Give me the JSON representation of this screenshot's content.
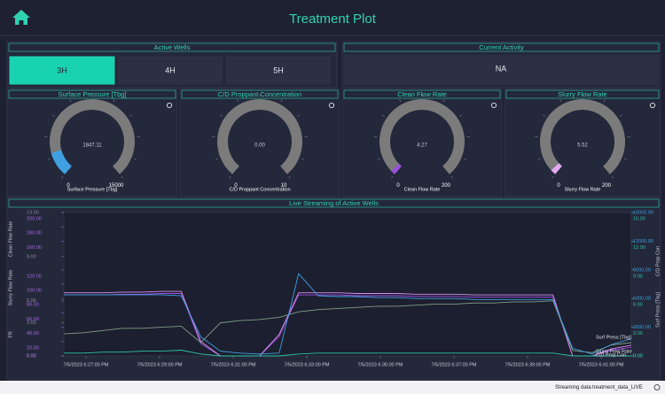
{
  "header": {
    "title": "Treatment Plot"
  },
  "active_wells": {
    "title": "Active Wells",
    "wells": [
      "3H",
      "4H",
      "5H"
    ],
    "selected": 0
  },
  "current_activity": {
    "title": "Current Activity",
    "value": "NA"
  },
  "gauges": [
    {
      "title": "Surface Pressure [Tbg]",
      "value": 1847.11,
      "min": 0,
      "max": 15000,
      "label": "Surface Pressure [Tbg]",
      "color": "#3f9fe0"
    },
    {
      "title": "C/D Proppant Concentration",
      "value": 0,
      "value_label": "0.00",
      "min": 0,
      "max": 10,
      "label": "C/D Proppant Concentration",
      "color": "#2ec4a0"
    },
    {
      "title": "Clean Flow Rate",
      "value": 4.27,
      "min": 0,
      "max": 200,
      "label": "Clean Flow Rate",
      "color": "#9b4fe0"
    },
    {
      "title": "Slurry Flow Rate",
      "value": 5.52,
      "min": 0,
      "max": 200,
      "label": "Slurry Flow Rate",
      "color": "#e2a6f2"
    }
  ],
  "chart": {
    "title": "Live Streaming of Active Wells",
    "xticks": [
      "7/5/2023 6:27:00 PM",
      "7/5/2023 6:29:00 PM",
      "7/5/2023 6:31:00 PM",
      "7/5/2023 6:33:00 PM",
      "7/5/2023 6:35:00 PM",
      "7/5/2023 6:37:00 PM",
      "7/5/2023 6:39:00 PM",
      "7/5/2023 6:41:00 PM"
    ],
    "axes": {
      "fr": {
        "side": "left",
        "color": "#8a8f9c",
        "ylim": [
          0,
          13
        ],
        "yticks": [
          {
            "value": 13,
            "label": "13.00"
          },
          {
            "value": 9,
            "label": "9.00"
          },
          {
            "value": 5,
            "label": "5.00"
          },
          {
            "value": 3,
            "label": "3.00"
          },
          {
            "value": 0,
            "label": "0.00"
          }
        ]
      },
      "clean": {
        "side": "left",
        "color": "#a66be8",
        "ylim": [
          0,
          200
        ],
        "yticks": [
          {
            "value": 200,
            "label": "200.00"
          },
          {
            "value": 180,
            "label": "180.00"
          },
          {
            "value": 160,
            "label": "160.00"
          },
          {
            "value": 120,
            "label": "120.00"
          },
          {
            "value": 100,
            "label": "100.00"
          },
          {
            "value": 80,
            "label": "80.00"
          },
          {
            "value": 60,
            "label": "60.00"
          },
          {
            "value": 40,
            "label": "40.00"
          },
          {
            "value": 20,
            "label": "20.00"
          },
          {
            "value": 0,
            "label": "0.00"
          }
        ]
      },
      "press": {
        "side": "right",
        "color": "#3f9fe0",
        "ylim": [
          0,
          15000
        ],
        "yticks": [
          {
            "value": 15000,
            "label": "15000.00"
          },
          {
            "value": 12000,
            "label": "12000.00"
          },
          {
            "value": 9000,
            "label": "9000.00"
          },
          {
            "value": 6000,
            "label": "6000.00"
          },
          {
            "value": 3000,
            "label": "3000.00"
          },
          {
            "value": 0,
            "label": "0.00"
          }
        ]
      },
      "prop": {
        "side": "right",
        "color": "#2ec4a0",
        "ylim": [
          0,
          15
        ],
        "yticks": [
          {
            "value": 15,
            "label": "15.00"
          },
          {
            "value": 12,
            "label": "12.00"
          },
          {
            "value": 9,
            "label": "9.00"
          },
          {
            "value": 6,
            "label": "6.00"
          },
          {
            "value": 3,
            "label": "3.00"
          },
          {
            "value": 0,
            "label": "0.00"
          }
        ]
      }
    },
    "series": [
      {
        "name": "Clean Flow Rate",
        "axis": "clean",
        "side": "left",
        "end_label": false,
        "color": "#9b4fe0",
        "values": [
          85,
          85,
          85,
          86,
          86,
          87,
          87,
          17,
          0,
          0,
          0,
          27,
          85,
          85,
          85,
          84,
          84,
          84,
          83,
          83,
          83,
          82,
          82,
          82,
          82,
          82,
          0,
          0,
          8,
          12
        ]
      },
      {
        "name": "Slurry Flow Rate",
        "axis": "clean",
        "side": "left",
        "end_label": true,
        "color": "#d98cf0",
        "values": [
          88,
          88,
          88,
          89,
          89,
          90,
          90,
          20,
          0,
          0,
          0,
          30,
          88,
          88,
          88,
          87,
          87,
          87,
          86,
          86,
          86,
          85,
          85,
          85,
          85,
          85,
          0,
          0,
          10,
          15
        ]
      },
      {
        "name": "FR",
        "axis": "fr",
        "side": "left",
        "end_label": false,
        "color": "#7f9f86",
        "values": [
          2.0,
          2.1,
          2.3,
          2.5,
          2.5,
          2.6,
          2.7,
          1.2,
          3.0,
          3.2,
          3.3,
          3.5,
          4.0,
          4.2,
          4.3,
          4.4,
          4.5,
          4.5,
          4.6,
          4.7,
          4.7,
          4.8,
          4.8,
          4.9,
          4.9,
          5.0,
          0.5,
          0.3,
          1.0,
          1.2
        ]
      },
      {
        "name": "C/D Prop Con",
        "axis": "prop",
        "side": "right",
        "end_label": true,
        "color": "#2ec4a0",
        "values": [
          0.3,
          0.3,
          0.4,
          0.4,
          0.5,
          0.5,
          0.6,
          0.2,
          0,
          0,
          0,
          0,
          0.2,
          0.3,
          0.3,
          0.3,
          0.3,
          0.3,
          0.3,
          0.3,
          0.3,
          0.3,
          0.3,
          0.3,
          0.3,
          0.3,
          0,
          0,
          0,
          0
        ]
      },
      {
        "name": "Surf Press [Tbg]",
        "axis": "press",
        "side": "right",
        "end_label": true,
        "color": "#3f9fe0",
        "values": [
          6400,
          6400,
          6400,
          6400,
          6400,
          6400,
          6300,
          2000,
          500,
          300,
          200,
          300,
          8600,
          6300,
          6200,
          6200,
          6100,
          6100,
          6000,
          6000,
          6000,
          5900,
          5900,
          5900,
          5900,
          5900,
          800,
          200,
          1200,
          1800
        ]
      }
    ]
  },
  "footer": {
    "status": "Streaming data",
    "source": "treatment_data_LIVE"
  }
}
